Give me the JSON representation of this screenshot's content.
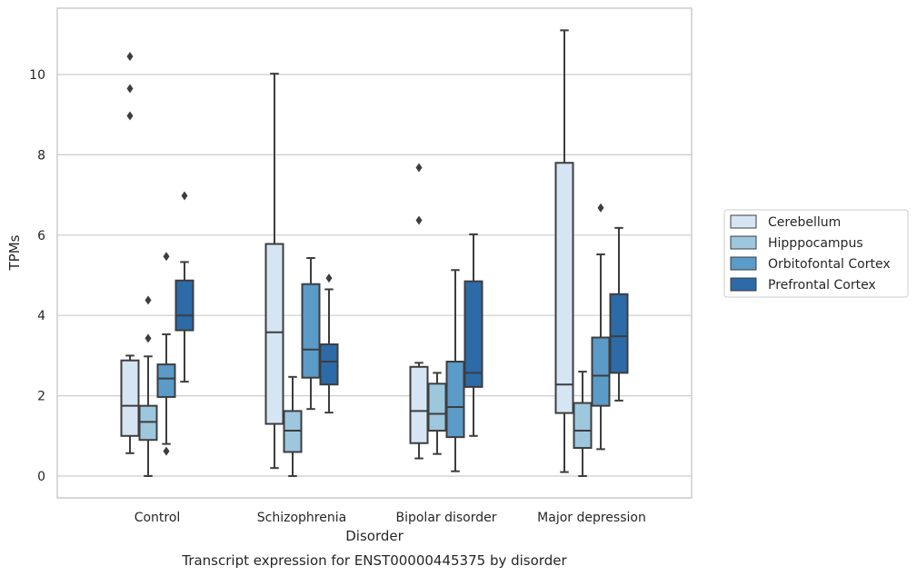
{
  "chart_data": {
    "type": "box",
    "title": "",
    "caption": "Transcript expression for ENST00000445375 by disorder",
    "xlabel": "Disorder",
    "ylabel": "TPMs",
    "ylim": [
      -0.5,
      11.7
    ],
    "yticks": [
      0,
      2,
      4,
      6,
      8,
      10
    ],
    "grid": "horizontal",
    "legend_position": "right",
    "categories": [
      "Control",
      "Schizophrenia",
      "Bipolar disorder",
      "Major depression"
    ],
    "series": [
      {
        "name": "Cerebellum",
        "color": "#d6e5f4",
        "boxes": [
          {
            "whisker_low": 0.57,
            "q1": 1.0,
            "median": 1.75,
            "q3": 2.88,
            "whisker_high": 3.0,
            "outliers": [
              8.97,
              9.65,
              10.45
            ]
          },
          {
            "whisker_low": 0.2,
            "q1": 1.3,
            "median": 3.58,
            "q3": 5.78,
            "whisker_high": 10.02,
            "outliers": []
          },
          {
            "whisker_low": 0.44,
            "q1": 0.82,
            "median": 1.62,
            "q3": 2.72,
            "whisker_high": 2.82,
            "outliers": [
              6.37,
              7.68
            ]
          },
          {
            "whisker_low": 0.1,
            "q1": 1.57,
            "median": 2.28,
            "q3": 7.8,
            "whisker_high": 11.1,
            "outliers": []
          }
        ]
      },
      {
        "name": "Hipppocampus",
        "color": "#9dc7dd",
        "boxes": [
          {
            "whisker_low": 0.0,
            "q1": 0.9,
            "median": 1.35,
            "q3": 1.75,
            "whisker_high": 2.98,
            "outliers": [
              3.43,
              4.38
            ]
          },
          {
            "whisker_low": 0.0,
            "q1": 0.6,
            "median": 1.13,
            "q3": 1.62,
            "whisker_high": 2.47,
            "outliers": []
          },
          {
            "whisker_low": 0.55,
            "q1": 1.13,
            "median": 1.55,
            "q3": 2.3,
            "whisker_high": 2.57,
            "outliers": []
          },
          {
            "whisker_low": 0.0,
            "q1": 0.7,
            "median": 1.13,
            "q3": 1.82,
            "whisker_high": 2.6,
            "outliers": []
          }
        ]
      },
      {
        "name": "Orbitofontal Cortex",
        "color": "#5a9bc8",
        "boxes": [
          {
            "whisker_low": 0.8,
            "q1": 1.97,
            "median": 2.43,
            "q3": 2.78,
            "whisker_high": 3.53,
            "outliers": [
              0.62,
              5.47
            ]
          },
          {
            "whisker_low": 1.67,
            "q1": 2.45,
            "median": 3.15,
            "q3": 4.78,
            "whisker_high": 5.43,
            "outliers": []
          },
          {
            "whisker_low": 0.12,
            "q1": 0.97,
            "median": 1.72,
            "q3": 2.85,
            "whisker_high": 5.13,
            "outliers": []
          },
          {
            "whisker_low": 0.67,
            "q1": 1.75,
            "median": 2.5,
            "q3": 3.45,
            "whisker_high": 5.52,
            "outliers": [
              6.68
            ]
          }
        ]
      },
      {
        "name": "Prefrontal Cortex",
        "color": "#2d6aa8",
        "boxes": [
          {
            "whisker_low": 2.35,
            "q1": 3.63,
            "median": 4.0,
            "q3": 4.87,
            "whisker_high": 5.33,
            "outliers": [
              6.98
            ]
          },
          {
            "whisker_low": 1.58,
            "q1": 2.28,
            "median": 2.85,
            "q3": 3.28,
            "whisker_high": 4.65,
            "outliers": [
              4.93
            ]
          },
          {
            "whisker_low": 1.0,
            "q1": 2.22,
            "median": 2.57,
            "q3": 4.85,
            "whisker_high": 6.02,
            "outliers": []
          },
          {
            "whisker_low": 1.88,
            "q1": 2.57,
            "median": 3.48,
            "q3": 4.53,
            "whisker_high": 6.18,
            "outliers": []
          }
        ]
      }
    ]
  }
}
